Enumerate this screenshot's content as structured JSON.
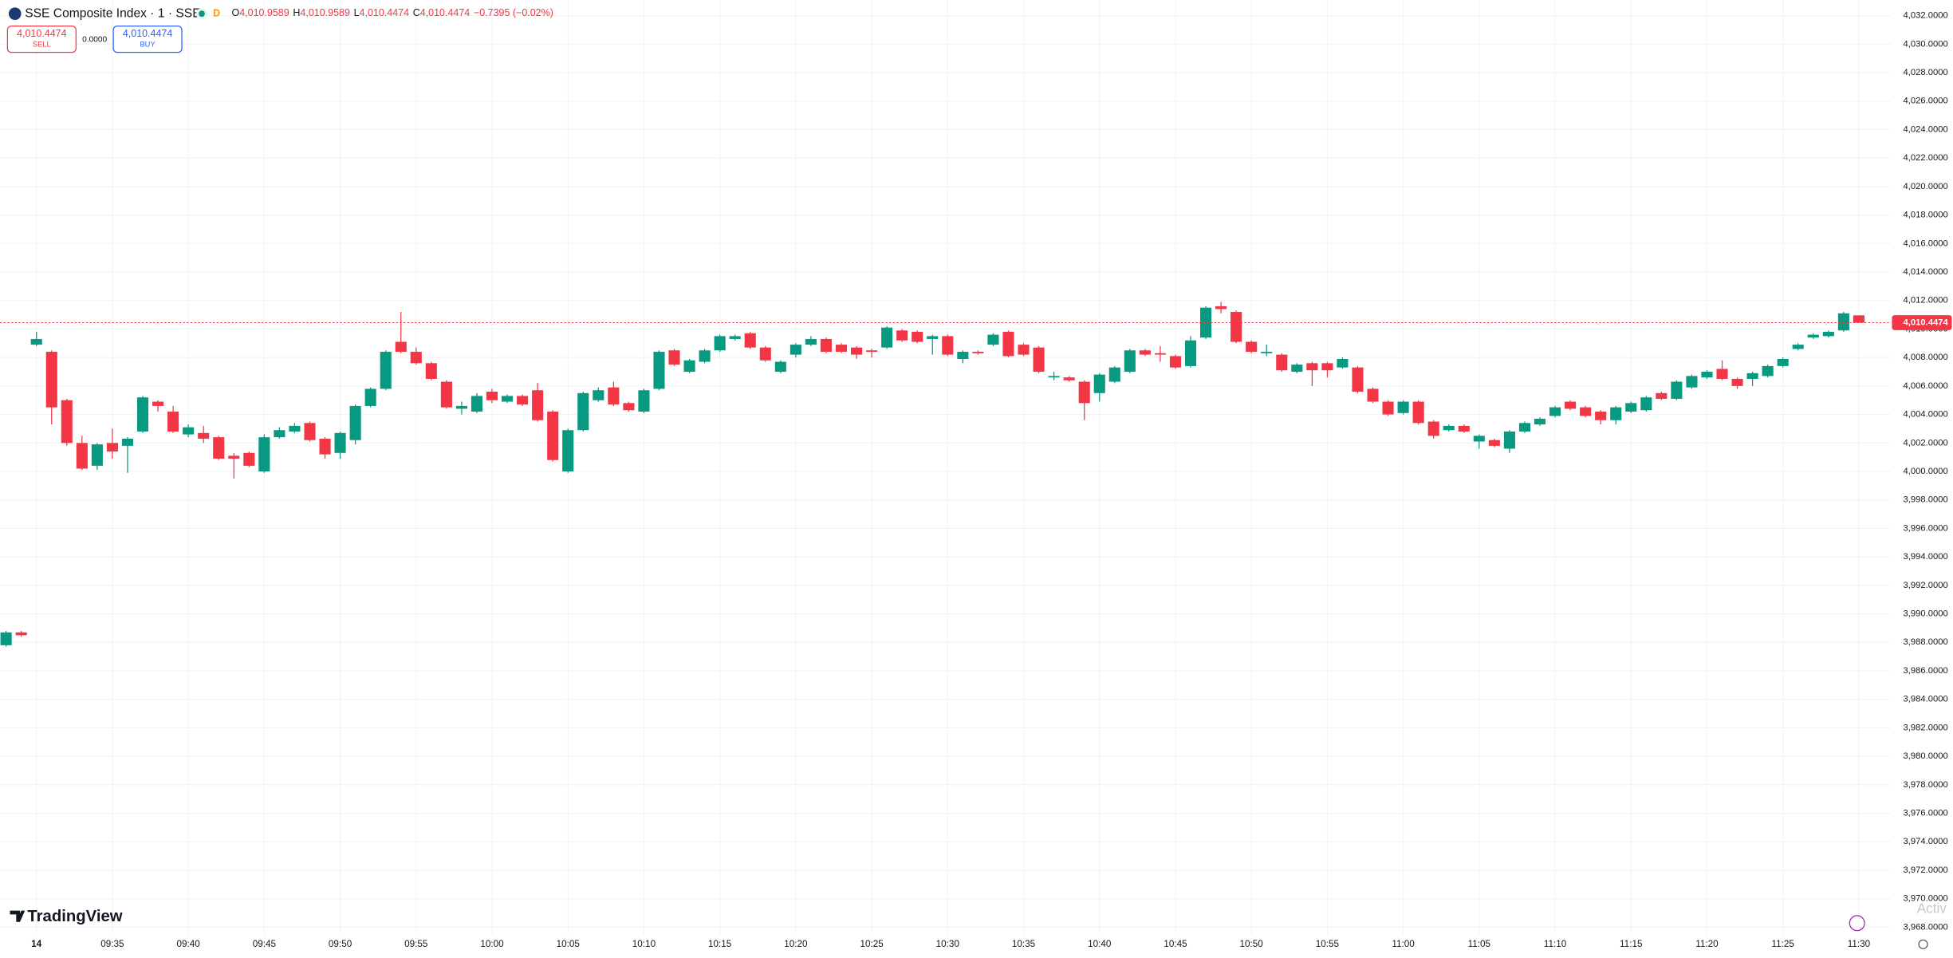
{
  "chart_data": {
    "type": "candlestick",
    "header": {
      "title": "SSE Composite Index · 1 · SSE",
      "interval_badge": "D",
      "ohlc": [
        {
          "key": "O",
          "value": "4,010.9589"
        },
        {
          "key": "H",
          "value": "4,010.9589"
        },
        {
          "key": "L",
          "value": "4,010.4474"
        },
        {
          "key": "C",
          "value": "4,010.4474"
        }
      ],
      "change": "−0.7395 (−0.02%)"
    },
    "trade": {
      "sell_price": "4,010.4474",
      "sell_label": "SELL",
      "spread": "0.0000",
      "buy_price": "4,010.4474",
      "buy_label": "BUY"
    },
    "watermark": "TradingView",
    "overlay_text": "Activ",
    "up_color": "#089981",
    "down_color": "#f23645",
    "grid": true,
    "last_price": {
      "value": 4010.4474,
      "label": "4,010.4474"
    },
    "xlim": [
      -0.4,
      124.1
    ],
    "ylim": [
      3967.5,
      4033.1
    ],
    "xticks": [
      {
        "value": 2,
        "label": "14"
      },
      {
        "value": 7,
        "label": "09:35"
      },
      {
        "value": 12,
        "label": "09:40"
      },
      {
        "value": 17,
        "label": "09:45"
      },
      {
        "value": 22,
        "label": "09:50"
      },
      {
        "value": 27,
        "label": "09:55"
      },
      {
        "value": 32,
        "label": "10:00"
      },
      {
        "value": 37,
        "label": "10:05"
      },
      {
        "value": 42,
        "label": "10:10"
      },
      {
        "value": 47,
        "label": "10:15"
      },
      {
        "value": 52,
        "label": "10:20"
      },
      {
        "value": 57,
        "label": "10:25"
      },
      {
        "value": 62,
        "label": "10:30"
      },
      {
        "value": 67,
        "label": "10:35"
      },
      {
        "value": 72,
        "label": "10:40"
      },
      {
        "value": 77,
        "label": "10:45"
      },
      {
        "value": 82,
        "label": "10:50"
      },
      {
        "value": 87,
        "label": "10:55"
      },
      {
        "value": 92,
        "label": "11:00"
      },
      {
        "value": 97,
        "label": "11:05"
      },
      {
        "value": 102,
        "label": "11:10"
      },
      {
        "value": 107,
        "label": "11:15"
      },
      {
        "value": 112,
        "label": "11:20"
      },
      {
        "value": 117,
        "label": "11:25"
      },
      {
        "value": 122,
        "label": "11:30"
      }
    ],
    "yticks": [
      {
        "value": 4032,
        "label": "4,032.0000"
      },
      {
        "value": 4030,
        "label": "4,030.0000"
      },
      {
        "value": 4028,
        "label": "4,028.0000"
      },
      {
        "value": 4026,
        "label": "4,026.0000"
      },
      {
        "value": 4024,
        "label": "4,024.0000"
      },
      {
        "value": 4022,
        "label": "4,022.0000"
      },
      {
        "value": 4020,
        "label": "4,020.0000"
      },
      {
        "value": 4018,
        "label": "4,018.0000"
      },
      {
        "value": 4016,
        "label": "4,016.0000"
      },
      {
        "value": 4014,
        "label": "4,014.0000"
      },
      {
        "value": 4012,
        "label": "4,012.0000"
      },
      {
        "value": 4010,
        "label": "4,010.0000"
      },
      {
        "value": 4008,
        "label": "4,008.0000"
      },
      {
        "value": 4006,
        "label": "4,006.0000"
      },
      {
        "value": 4004,
        "label": "4,004.0000"
      },
      {
        "value": 4002,
        "label": "4,002.0000"
      },
      {
        "value": 4000,
        "label": "4,000.0000"
      },
      {
        "value": 3998,
        "label": "3,998.0000"
      },
      {
        "value": 3996,
        "label": "3,996.0000"
      },
      {
        "value": 3994,
        "label": "3,994.0000"
      },
      {
        "value": 3992,
        "label": "3,992.0000"
      },
      {
        "value": 3990,
        "label": "3,990.0000"
      },
      {
        "value": 3988,
        "label": "3,988.0000"
      },
      {
        "value": 3986,
        "label": "3,986.0000"
      },
      {
        "value": 3984,
        "label": "3,984.0000"
      },
      {
        "value": 3982,
        "label": "3,982.0000"
      },
      {
        "value": 3980,
        "label": "3,980.0000"
      },
      {
        "value": 3978,
        "label": "3,978.0000"
      },
      {
        "value": 3976,
        "label": "3,976.0000"
      },
      {
        "value": 3974,
        "label": "3,974.0000"
      },
      {
        "value": 3972,
        "label": "3,972.0000"
      },
      {
        "value": 3970,
        "label": "3,970.0000"
      },
      {
        "value": 3968,
        "label": "3,968.0000"
      }
    ],
    "open": [
      3987.8,
      3988.7,
      4008.9,
      4008.4,
      4005.0,
      4002.0,
      4000.4,
      4002.0,
      4001.8,
      4002.8,
      4004.9,
      4004.2,
      4002.6,
      4002.7,
      4002.4,
      4001.1,
      4001.3,
      4000.0,
      4002.4,
      4002.8,
      4003.4,
      4002.3,
      4001.3,
      4002.2,
      4004.6,
      4005.8,
      4009.1,
      4008.4,
      4007.6,
      4006.3,
      4004.4,
      4004.2,
      4005.6,
      4004.9,
      4005.3,
      4005.7,
      4004.2,
      4000.0,
      4002.9,
      4005.0,
      4005.9,
      4004.8,
      4004.2,
      4005.8,
      4008.5,
      4007.0,
      4007.7,
      4008.5,
      4009.3,
      4009.7,
      4008.7,
      4007.0,
      4008.2,
      4008.9,
      4009.3,
      4008.9,
      4008.7,
      4008.5,
      4008.7,
      4009.9,
      4009.8,
      4009.3,
      4009.5,
      4007.9,
      4008.4,
      4008.9,
      4009.8,
      4008.9,
      4008.7,
      4006.6,
      4006.6,
      4006.3,
      4005.5,
      4006.3,
      4007.0,
      4008.5,
      4008.3,
      4008.1,
      4007.4,
      4009.4,
      4011.6,
      4011.2,
      4009.1,
      4008.3,
      4008.2,
      4007.0,
      4007.6,
      4007.6,
      4007.3,
      4007.3,
      4005.8,
      4004.9,
      4004.1,
      4004.9,
      4003.5,
      4002.9,
      4003.2,
      4002.1,
      4002.2,
      4001.6,
      4002.8,
      4003.3,
      4003.9,
      4004.9,
      4004.5,
      4004.2,
      4003.6,
      4004.2,
      4004.3,
      4005.5,
      4005.1,
      4005.9,
      4006.6,
      4007.2,
      4006.5,
      4006.5,
      4006.7,
      4007.4,
      4008.6,
      4009.4,
      4009.5,
      4009.9,
      4010.9589
    ],
    "high": [
      3988.8,
      3988.8,
      4009.8,
      4008.5,
      4005.1,
      4002.5,
      4002.0,
      4003.0,
      4002.4,
      4005.3,
      4005.0,
      4004.6,
      4003.3,
      4003.2,
      4002.5,
      4001.3,
      4001.4,
      4002.6,
      4003.1,
      4003.4,
      4003.5,
      4002.4,
      4002.8,
      4004.7,
      4005.9,
      4008.5,
      4011.2,
      4008.7,
      4007.7,
      4006.4,
      4004.9,
      4005.5,
      4005.8,
      4005.4,
      4005.4,
      4006.2,
      4004.3,
      4003.0,
      4005.6,
      4005.9,
      4006.3,
      4004.9,
      4005.8,
      4008.5,
      4008.6,
      4007.9,
      4008.6,
      4009.6,
      4009.6,
      4009.8,
      4008.8,
      4007.8,
      4009.0,
      4009.5,
      4009.4,
      4009.0,
      4008.8,
      4008.6,
      4010.2,
      4010.0,
      4009.9,
      4009.6,
      4009.6,
      4008.5,
      4008.5,
      4009.7,
      4009.9,
      4009.0,
      4008.8,
      4007.0,
      4006.7,
      4006.4,
      4006.9,
      4007.4,
      4008.6,
      4008.6,
      4008.8,
      4008.2,
      4009.5,
      4011.6,
      4011.9,
      4011.3,
      4009.2,
      4008.9,
      4008.3,
      4007.6,
      4007.7,
      4007.7,
      4008.0,
      4007.4,
      4005.9,
      4005.0,
      4005.0,
      4005.0,
      4003.6,
      4003.3,
      4003.3,
      4002.6,
      4002.3,
      4002.9,
      4003.5,
      4003.8,
      4004.6,
      4005.0,
      4004.6,
      4004.3,
      4004.6,
      4004.9,
      4005.3,
      4005.6,
      4006.4,
      4006.8,
      4007.1,
      4007.8,
      4006.6,
      4007.0,
      4007.5,
      4008.0,
      4009.0,
      4009.7,
      4009.9,
      4011.2,
      4010.9589
    ],
    "low": [
      3987.7,
      3988.4,
      4008.8,
      4003.3,
      4001.8,
      4000.1,
      4000.1,
      4000.9,
      3999.9,
      4002.7,
      4004.2,
      4002.7,
      4002.4,
      4002.0,
      4000.8,
      3999.5,
      4000.3,
      3999.9,
      4002.3,
      4002.7,
      4002.1,
      4000.9,
      4000.9,
      4001.9,
      4004.5,
      4005.7,
      4008.3,
      4007.5,
      4006.4,
      4004.4,
      4004.0,
      4004.1,
      4004.8,
      4004.8,
      4004.6,
      4003.5,
      4000.7,
      3999.9,
      4002.8,
      4004.9,
      4004.6,
      4004.2,
      4004.1,
      4005.7,
      4007.4,
      4006.9,
      4007.6,
      4008.4,
      4009.2,
      4008.6,
      4007.7,
      4006.9,
      4008.0,
      4008.8,
      4008.3,
      4008.3,
      4007.9,
      4008.0,
      4008.6,
      4009.1,
      4009.0,
      4008.2,
      4008.1,
      4007.6,
      4008.2,
      4008.8,
      4008.0,
      4008.1,
      4006.9,
      4006.4,
      4006.3,
      4003.6,
      4004.9,
      4006.2,
      4006.9,
      4008.1,
      4007.7,
      4007.2,
      4007.3,
      4009.3,
      4011.1,
      4009.0,
      4008.3,
      4008.1,
      4007.0,
      4006.9,
      4006.0,
      4006.6,
      4007.2,
      4005.5,
      4004.8,
      4003.9,
      4004.0,
      4003.3,
      4002.3,
      4002.8,
      4002.7,
      4001.6,
      4001.7,
      4001.3,
      4002.7,
      4003.2,
      4003.8,
      4004.3,
      4003.8,
      4003.3,
      4003.3,
      4004.1,
      4004.2,
      4005.0,
      4005.0,
      4005.8,
      4006.5,
      4006.4,
      4005.8,
      4006.0,
      4006.6,
      4007.3,
      4008.5,
      4009.3,
      4009.4,
      4009.8,
      4010.4474
    ],
    "close": [
      3988.7,
      3988.5,
      4009.3,
      4004.5,
      4002.0,
      4000.2,
      4001.9,
      4001.4,
      4002.3,
      4005.2,
      4004.6,
      4002.8,
      4003.1,
      4002.3,
      4000.9,
      4000.9,
      4000.4,
      4002.4,
      4002.9,
      4003.2,
      4002.2,
      4001.2,
      4002.7,
      4004.6,
      4005.8,
      4008.4,
      4008.4,
      4007.6,
      4006.5,
      4004.5,
      4004.6,
      4005.3,
      4005.0,
      4005.3,
      4004.7,
      4003.6,
      4000.8,
      4002.9,
      4005.5,
      4005.7,
      4004.7,
      4004.3,
      4005.7,
      4008.4,
      4007.5,
      4007.8,
      4008.5,
      4009.5,
      4009.5,
      4008.7,
      4007.8,
      4007.7,
      4008.9,
      4009.3,
      4008.4,
      4008.4,
      4008.2,
      4008.4,
      4010.1,
      4009.2,
      4009.1,
      4009.5,
      4008.2,
      4008.4,
      4008.3,
      4009.6,
      4008.1,
      4008.2,
      4007.0,
      4006.7,
      4006.4,
      4004.8,
      4006.8,
      4007.3,
      4008.5,
      4008.2,
      4008.2,
      4007.3,
      4009.2,
      4011.5,
      4011.4,
      4009.1,
      4008.4,
      4008.4,
      4007.1,
      4007.5,
      4007.1,
      4007.1,
      4007.9,
      4005.6,
      4004.9,
      4004.0,
      4004.9,
      4003.4,
      4002.5,
      4003.2,
      4002.8,
      4002.5,
      4001.8,
      4002.8,
      4003.4,
      4003.7,
      4004.5,
      4004.4,
      4003.9,
      4003.6,
      4004.5,
      4004.8,
      4005.2,
      4005.1,
      4006.3,
      4006.7,
      4007.0,
      4006.5,
      4006.0,
      4006.9,
      4007.4,
      4007.9,
      4008.9,
      4009.6,
      4009.8,
      4011.1,
      4010.4474
    ]
  }
}
